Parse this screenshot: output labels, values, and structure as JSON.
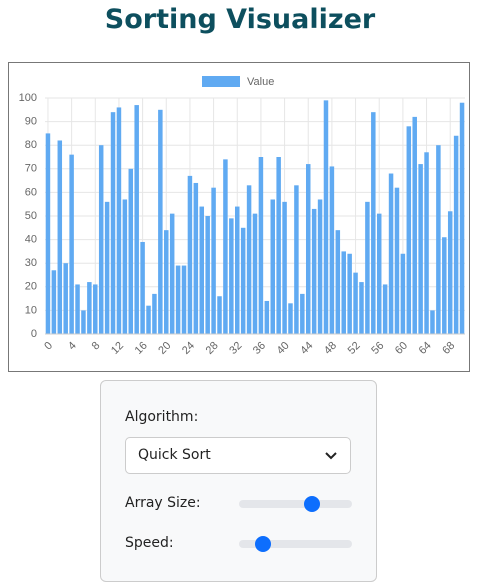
{
  "header": {
    "title": "Sorting Visualizer"
  },
  "chart_data": {
    "type": "bar",
    "categories": [
      "0",
      null,
      null,
      null,
      "4",
      null,
      null,
      null,
      "8",
      null,
      null,
      null,
      "12",
      null,
      null,
      null,
      "16",
      null,
      null,
      null,
      "20",
      null,
      null,
      null,
      "24",
      null,
      null,
      null,
      "28",
      null,
      null,
      null,
      "32",
      null,
      null,
      null,
      "36",
      null,
      null,
      null,
      "40",
      null,
      null,
      null,
      "44",
      null,
      null,
      null,
      "48",
      null,
      null,
      null,
      "52",
      null,
      null,
      null,
      "56",
      null,
      null,
      null,
      "60",
      null,
      null,
      null,
      "64",
      null,
      null,
      null,
      "68",
      null,
      null
    ],
    "series": [
      {
        "name": "Value",
        "color": "#60aaf2",
        "values": [
          85,
          27,
          82,
          30,
          76,
          21,
          10,
          22,
          21,
          80,
          56,
          94,
          96,
          57,
          70,
          97,
          39,
          12,
          17,
          95,
          44,
          51,
          29,
          29,
          67,
          64,
          54,
          50,
          62,
          16,
          74,
          49,
          54,
          45,
          63,
          51,
          75,
          14,
          57,
          75,
          56,
          13,
          63,
          17,
          72,
          53,
          57,
          99,
          71,
          44,
          35,
          34,
          26,
          22,
          56,
          94,
          51,
          21,
          68,
          62,
          34,
          88,
          92,
          72,
          77,
          10,
          80,
          41,
          52,
          84,
          98
        ]
      }
    ],
    "ylim": [
      0,
      100
    ],
    "yticks": [
      0,
      10,
      20,
      30,
      40,
      50,
      60,
      70,
      80,
      90,
      100
    ],
    "grid": true,
    "legend": "top"
  },
  "controls": {
    "algorithm_label": "Algorithm:",
    "algorithm_value": "Quick Sort",
    "array_size_label": "Array Size:",
    "speed_label": "Speed:"
  }
}
